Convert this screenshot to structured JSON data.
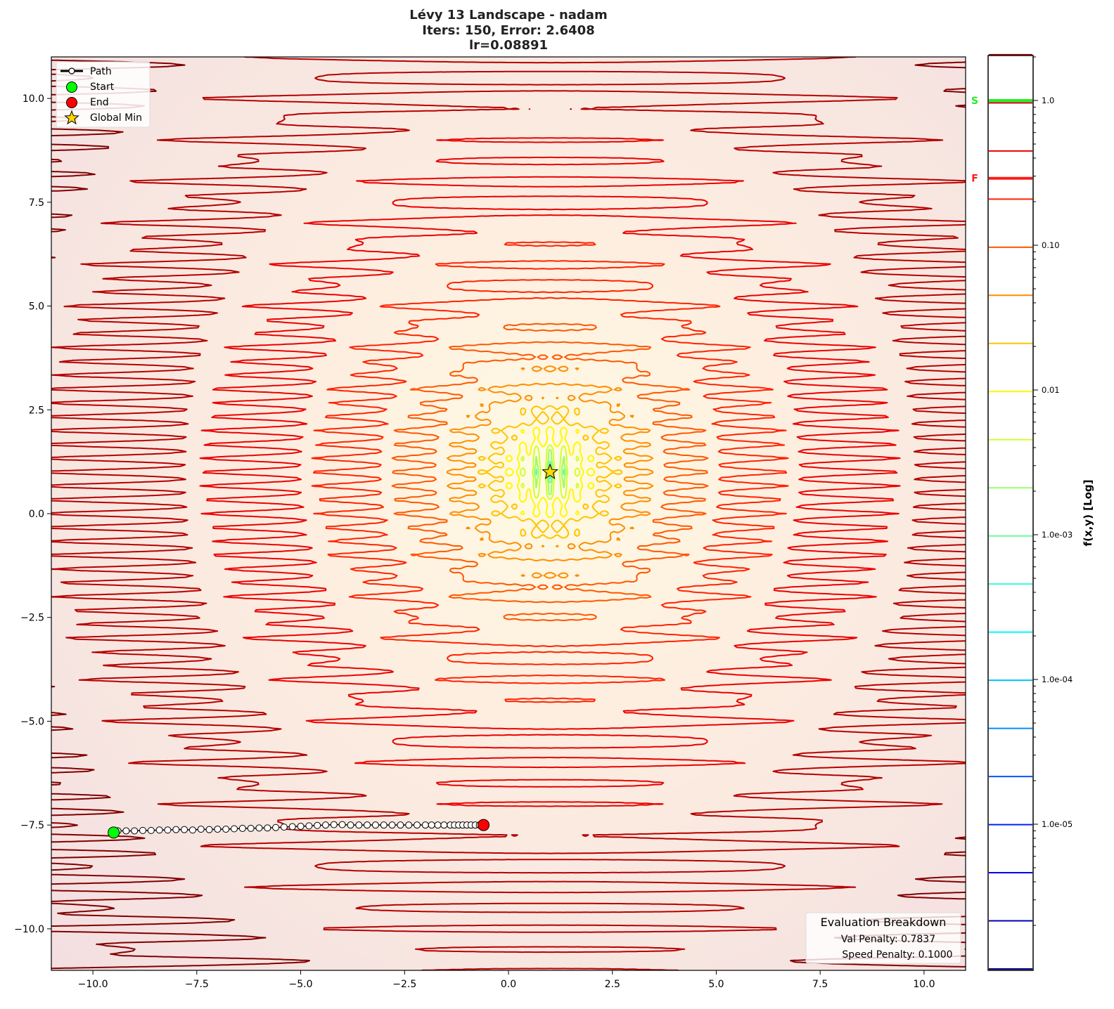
{
  "chart_data": {
    "type": "contour",
    "title": [
      "Lévy 13 Landscape - nadam",
      "Iters: 150, Error: 2.6408",
      "lr=0.08891"
    ],
    "xlim": [
      -11,
      11
    ],
    "ylim": [
      -11,
      11
    ],
    "xticks": [
      -10,
      -7.5,
      -5,
      -2.5,
      0,
      2.5,
      5,
      7.5,
      10
    ],
    "xtick_labels": [
      "−10.0",
      "−7.5",
      "−5.0",
      "−2.5",
      "0.0",
      "2.5",
      "5.0",
      "7.5",
      "10.0"
    ],
    "yticks": [
      10,
      7.5,
      5,
      2.5,
      0,
      -2.5,
      -5,
      -7.5,
      -10
    ],
    "ytick_labels": [
      "10.0",
      "7.5",
      "5.0",
      "2.5",
      "0.0",
      "−2.5",
      "−5.0",
      "−7.5",
      "−10.0"
    ],
    "grid": false,
    "colormap": "jet",
    "colorbar": {
      "label": "f(x,y) [Log]",
      "scale": "log",
      "range": [
        1e-06,
        2.07
      ],
      "n_levels": 20,
      "tick_values": [
        1.0,
        0.1,
        0.01,
        0.001,
        0.0001,
        1e-05
      ],
      "tick_labels": [
        "1.0",
        "0.10",
        "0.01",
        "1.0e-03",
        "1.0e-04",
        "1.0e-05"
      ],
      "markers": [
        {
          "label": "S",
          "value": 1.0,
          "color": "#22ee22"
        },
        {
          "label": "F",
          "value": 0.29,
          "color": "#ff1a1a"
        }
      ]
    },
    "legend": {
      "position": "top-left",
      "items": [
        {
          "label": "Path",
          "marker": "line-circle",
          "color": "#000000"
        },
        {
          "label": "Start",
          "marker": "circle",
          "color": "#00ff00"
        },
        {
          "label": "End",
          "marker": "circle",
          "color": "#ff0000"
        },
        {
          "label": "Global Min",
          "marker": "star",
          "color": "#ffd700"
        }
      ]
    },
    "start": [
      -9.5,
      -7.68
    ],
    "end": [
      -0.6,
      -7.5
    ],
    "global_min": [
      1,
      1
    ],
    "path": [
      [
        -9.5,
        -7.68
      ],
      [
        -9.4,
        -7.64
      ],
      [
        -9.2,
        -7.64
      ],
      [
        -9.0,
        -7.64
      ],
      [
        -8.8,
        -7.63
      ],
      [
        -8.6,
        -7.63
      ],
      [
        -8.4,
        -7.62
      ],
      [
        -8.2,
        -7.62
      ],
      [
        -8.0,
        -7.61
      ],
      [
        -7.8,
        -7.61
      ],
      [
        -7.6,
        -7.62
      ],
      [
        -7.4,
        -7.6
      ],
      [
        -7.2,
        -7.61
      ],
      [
        -7.0,
        -7.6
      ],
      [
        -6.8,
        -7.6
      ],
      [
        -6.6,
        -7.59
      ],
      [
        -6.4,
        -7.58
      ],
      [
        -6.2,
        -7.58
      ],
      [
        -6.0,
        -7.57
      ],
      [
        -5.8,
        -7.57
      ],
      [
        -5.6,
        -7.56
      ],
      [
        -5.4,
        -7.55
      ],
      [
        -5.2,
        -7.54
      ],
      [
        -5.0,
        -7.53
      ],
      [
        -4.8,
        -7.52
      ],
      [
        -4.6,
        -7.51
      ],
      [
        -4.4,
        -7.5
      ],
      [
        -4.2,
        -7.49
      ],
      [
        -4.0,
        -7.49
      ],
      [
        -3.8,
        -7.5
      ],
      [
        -3.6,
        -7.5
      ],
      [
        -3.4,
        -7.5
      ],
      [
        -3.2,
        -7.5
      ],
      [
        -3.0,
        -7.5
      ],
      [
        -2.8,
        -7.5
      ],
      [
        -2.6,
        -7.5
      ],
      [
        -2.4,
        -7.5
      ],
      [
        -2.2,
        -7.5
      ],
      [
        -2.0,
        -7.5
      ],
      [
        -1.85,
        -7.5
      ],
      [
        -1.7,
        -7.5
      ],
      [
        -1.55,
        -7.5
      ],
      [
        -1.4,
        -7.5
      ],
      [
        -1.3,
        -7.5
      ],
      [
        -1.2,
        -7.5
      ],
      [
        -1.1,
        -7.5
      ],
      [
        -1.0,
        -7.5
      ],
      [
        -0.9,
        -7.5
      ],
      [
        -0.8,
        -7.5
      ],
      [
        -0.7,
        -7.5
      ],
      [
        -0.6,
        -7.5
      ]
    ]
  },
  "breakdown": {
    "title": "Evaluation Breakdown",
    "val_penalty": "Val Penalty: 0.7837",
    "speed_penalty": "Speed Penalty: 0.1000"
  }
}
